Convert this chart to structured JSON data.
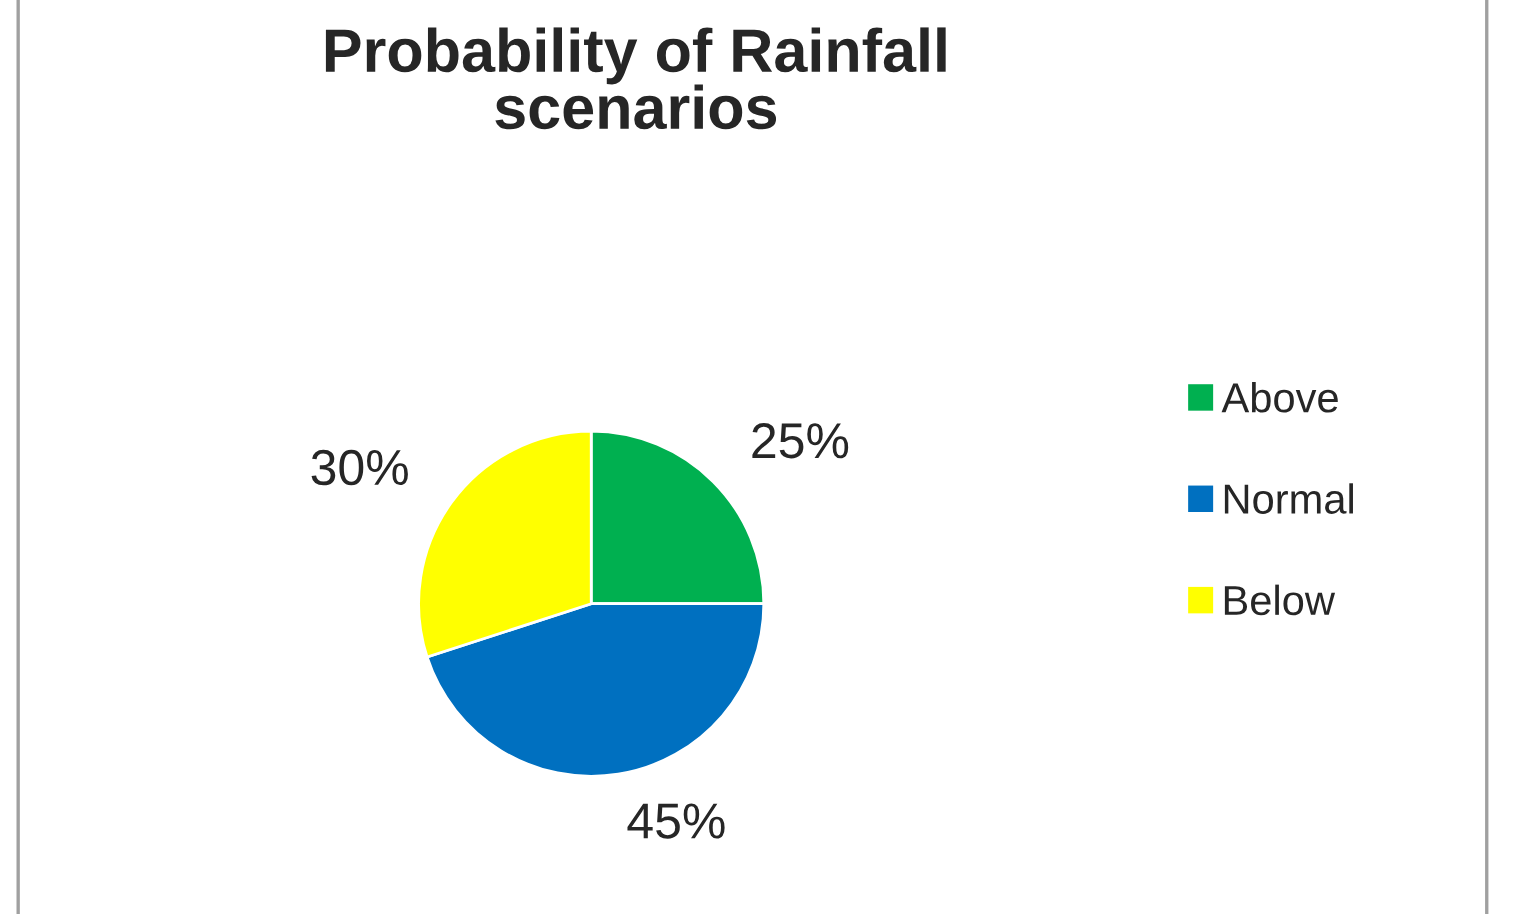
{
  "chart_data": {
    "type": "pie",
    "title": "Probability of Rainfall\nscenarios",
    "categories": [
      "Above",
      "Normal",
      "Below"
    ],
    "values": [
      25,
      45,
      30
    ],
    "colors": [
      "#00b050",
      "#0070c0",
      "#ffff00"
    ],
    "value_labels": [
      "25%",
      "45%",
      "30%"
    ],
    "legend": "right"
  }
}
